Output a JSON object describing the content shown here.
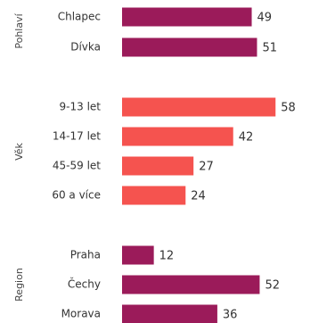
{
  "chart_data": {
    "type": "bar",
    "orientation": "horizontal",
    "grid": false,
    "legend": "none",
    "groups": [
      {
        "label": "Pohlaví",
        "color": "#9b1b5a",
        "items": [
          {
            "label": "Chlapec",
            "value": 49
          },
          {
            "label": "Dívka",
            "value": 51
          }
        ]
      },
      {
        "label": "Věk",
        "color": "#f5534f",
        "items": [
          {
            "label": "9-13 let",
            "value": 58
          },
          {
            "label": "14-17 let",
            "value": 42
          },
          {
            "label": "45-59 let",
            "value": 27
          },
          {
            "label": "60 a více",
            "value": 24
          }
        ]
      },
      {
        "label": "Region",
        "color": "#9b1b5a",
        "items": [
          {
            "label": "Praha",
            "value": 12
          },
          {
            "label": "Čechy",
            "value": 52
          },
          {
            "label": "Morava",
            "value": 36
          }
        ]
      }
    ]
  }
}
